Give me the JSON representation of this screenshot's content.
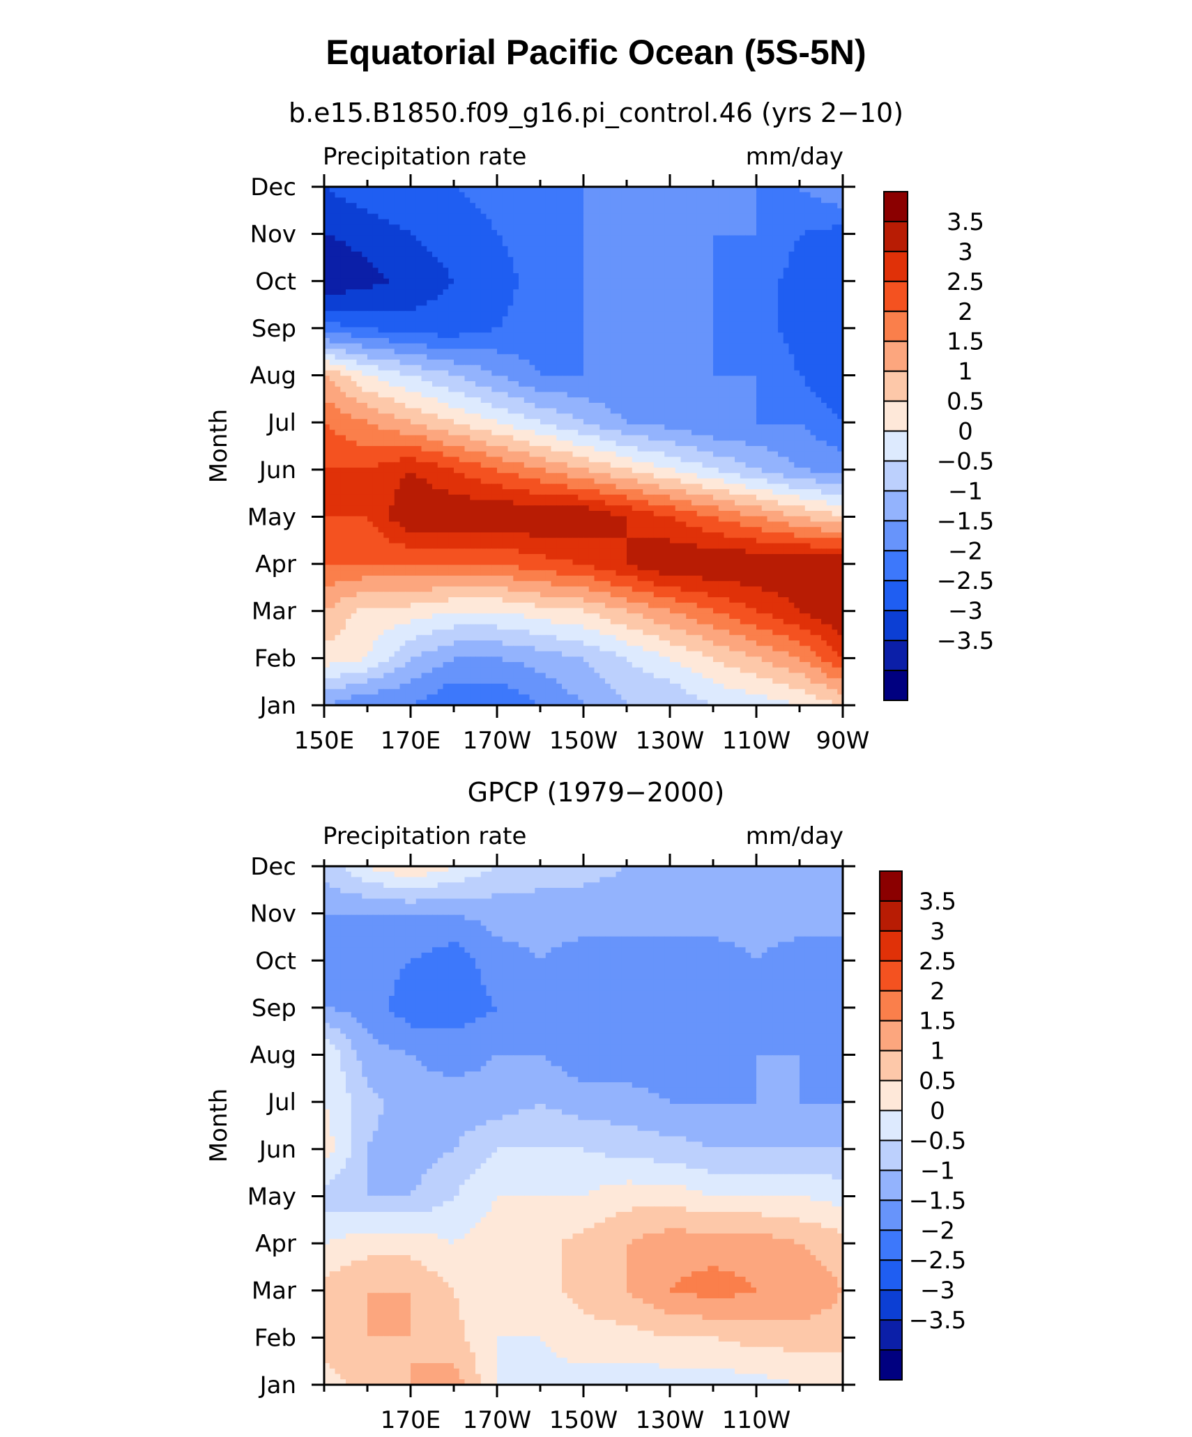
{
  "figure": {
    "title": "Equatorial Pacific Ocean (5S-5N)"
  },
  "palette": [
    "#000080",
    "#0b1fa8",
    "#0c3fd4",
    "#1f5ef2",
    "#3d78fb",
    "#6794fb",
    "#93b3fd",
    "#bcd0fd",
    "#ddeafe",
    "#fee8d9",
    "#fdc8a9",
    "#fca67e",
    "#fa7f4b",
    "#f45220",
    "#e03108",
    "#b81c04",
    "#8b0000"
  ],
  "chart_data": [
    {
      "type": "heatmap",
      "title": "b.e15.B1850.f09_g16.pi_control.46 (yrs 2−10)",
      "left_label": "Precipitation rate",
      "right_label": "mm/day",
      "ylabel": "Month",
      "xlabel": "",
      "x_ticks": [
        "150E",
        "170E",
        "170W",
        "150W",
        "130W",
        "110W",
        "90W"
      ],
      "x_values": [
        150,
        170,
        190,
        210,
        230,
        250,
        270
      ],
      "y_ticks": [
        "Jan",
        "Feb",
        "Mar",
        "Apr",
        "May",
        "Jun",
        "Jul",
        "Aug",
        "Sep",
        "Oct",
        "Nov",
        "Dec"
      ],
      "colorbar_labels": [
        "3.5",
        "3",
        "2.5",
        "2",
        "1.5",
        "1",
        "0.5",
        "0",
        "−0.5",
        "−1",
        "−1.5",
        "−2",
        "−2.5",
        "−3",
        "−3.5"
      ],
      "contour_levels": [
        -3.5,
        -3,
        -2.5,
        -2,
        -1.5,
        -1,
        -0.5,
        0,
        0.5,
        1,
        1.5,
        2,
        2.5,
        3,
        3.5
      ],
      "lon": [
        150,
        160,
        170,
        180,
        190,
        200,
        210,
        220,
        230,
        240,
        250,
        260,
        270
      ],
      "values": [
        [
          -1.0,
          -1.5,
          -1.5,
          -2.0,
          -2.0,
          -1.5,
          -1.0,
          -0.5,
          -0.5,
          0.0,
          0.2,
          0.5,
          1.0
        ],
        [
          0.8,
          0.5,
          -0.5,
          -1.0,
          -1.0,
          -0.8,
          -0.5,
          0.0,
          0.5,
          1.0,
          1.5,
          2.0,
          3.0
        ],
        [
          1.5,
          0.8,
          0.8,
          0.5,
          0.5,
          0.8,
          1.0,
          1.5,
          2.0,
          2.5,
          3.0,
          3.5,
          4.0
        ],
        [
          2.5,
          2.5,
          2.5,
          2.5,
          2.5,
          2.8,
          3.0,
          3.5,
          4.0,
          4.0,
          4.0,
          4.0,
          4.0
        ],
        [
          3.0,
          3.0,
          4.0,
          4.0,
          4.0,
          4.0,
          4.0,
          3.5,
          3.0,
          2.5,
          2.0,
          1.5,
          1.0
        ],
        [
          3.0,
          3.0,
          3.5,
          3.0,
          2.5,
          2.0,
          1.5,
          1.0,
          0.5,
          0.0,
          -0.5,
          -1.0,
          -1.2
        ],
        [
          2.5,
          2.0,
          1.5,
          1.0,
          0.5,
          0.0,
          -0.5,
          -1.0,
          -1.2,
          -1.5,
          -1.5,
          -1.5,
          -2.0
        ],
        [
          1.5,
          0.5,
          0.0,
          -0.5,
          -1.0,
          -1.5,
          -1.5,
          -1.5,
          -1.5,
          -1.5,
          -1.5,
          -2.0,
          -2.5
        ],
        [
          -1.8,
          -2.0,
          -2.3,
          -2.3,
          -2.0,
          -1.8,
          -1.5,
          -1.5,
          -1.5,
          -1.5,
          -1.8,
          -2.2,
          -2.5
        ],
        [
          -3.5,
          -3.2,
          -2.8,
          -2.5,
          -2.2,
          -1.8,
          -1.5,
          -1.5,
          -1.5,
          -1.5,
          -1.8,
          -2.2,
          -2.5
        ],
        [
          -3.0,
          -2.8,
          -2.5,
          -2.3,
          -2.0,
          -1.8,
          -1.5,
          -1.5,
          -1.5,
          -1.5,
          -1.5,
          -2.0,
          -2.2
        ],
        [
          -2.5,
          -2.2,
          -2.0,
          -2.0,
          -1.8,
          -1.5,
          -1.5,
          -1.5,
          -1.5,
          -1.5,
          -1.5,
          -1.5,
          -1.0
        ]
      ]
    },
    {
      "type": "heatmap",
      "title": "GPCP (1979−2000)",
      "left_label": "Precipitation rate",
      "right_label": "mm/day",
      "ylabel": "Month",
      "xlabel": "",
      "x_ticks": [
        "170E",
        "170W",
        "150W",
        "130W",
        "110W"
      ],
      "x_values": [
        170,
        190,
        210,
        230,
        250
      ],
      "y_ticks": [
        "Jan",
        "Feb",
        "Mar",
        "Apr",
        "May",
        "Jun",
        "Jul",
        "Aug",
        "Sep",
        "Oct",
        "Nov",
        "Dec"
      ],
      "colorbar_labels": [
        "3.5",
        "3",
        "2.5",
        "2",
        "1.5",
        "1",
        "0.5",
        "0",
        "−0.5",
        "−1",
        "−1.5",
        "−2",
        "−2.5",
        "−3",
        "−3.5"
      ],
      "contour_levels": [
        -3.5,
        -3,
        -2.5,
        -2,
        -1.5,
        -1,
        -0.5,
        0,
        0.5,
        1,
        1.5,
        2,
        2.5,
        3,
        3.5
      ],
      "lon": [
        150,
        160,
        170,
        180,
        190,
        200,
        210,
        220,
        230,
        240,
        250,
        260,
        270
      ],
      "values": [
        [
          0.8,
          1.2,
          1.5,
          1.8,
          0.5,
          0.3,
          0.3,
          0.2,
          0.2,
          0.2,
          0.3,
          0.5,
          0.5
        ],
        [
          1.2,
          1.5,
          1.5,
          1.2,
          0.5,
          0.5,
          0.8,
          0.8,
          1.0,
          1.0,
          1.2,
          1.2,
          1.2
        ],
        [
          1.2,
          1.5,
          1.5,
          1.0,
          0.5,
          0.8,
          1.2,
          1.5,
          2.0,
          2.2,
          2.0,
          2.0,
          1.5
        ],
        [
          0.5,
          0.8,
          0.8,
          0.5,
          0.8,
          0.8,
          1.2,
          1.5,
          1.8,
          1.8,
          1.8,
          1.5,
          1.2
        ],
        [
          -0.2,
          -0.5,
          -0.5,
          0.0,
          0.5,
          0.5,
          0.5,
          0.8,
          0.8,
          0.5,
          0.5,
          0.5,
          0.3
        ],
        [
          0.8,
          -0.5,
          -0.8,
          -0.5,
          0.0,
          0.0,
          0.0,
          -0.2,
          -0.3,
          -0.5,
          -0.5,
          -0.5,
          -0.5
        ],
        [
          0.5,
          -0.3,
          -0.8,
          -0.8,
          -0.8,
          -0.5,
          -0.8,
          -0.8,
          -1.0,
          -1.0,
          -1.0,
          -1.0,
          -1.0
        ],
        [
          0.5,
          -0.8,
          -1.0,
          -1.2,
          -1.0,
          -1.0,
          -1.3,
          -1.3,
          -1.3,
          -1.2,
          -1.0,
          -1.0,
          -1.2
        ],
        [
          -1.0,
          -1.2,
          -1.8,
          -1.8,
          -1.5,
          -1.2,
          -1.5,
          -1.5,
          -1.5,
          -1.3,
          -1.2,
          -1.2,
          -1.3
        ],
        [
          -1.2,
          -1.3,
          -1.5,
          -1.8,
          -1.2,
          -1.0,
          -1.2,
          -1.2,
          -1.2,
          -1.2,
          -1.0,
          -1.2,
          -1.2
        ],
        [
          -1.0,
          -1.0,
          -1.0,
          -1.0,
          -0.8,
          -0.8,
          -0.8,
          -0.8,
          -0.8,
          -0.8,
          -0.8,
          -0.8,
          -0.8
        ],
        [
          -0.3,
          0.5,
          1.0,
          0.5,
          0.0,
          -0.2,
          -0.3,
          -0.5,
          -0.5,
          -0.5,
          -0.5,
          -0.5,
          -0.5
        ]
      ]
    }
  ]
}
